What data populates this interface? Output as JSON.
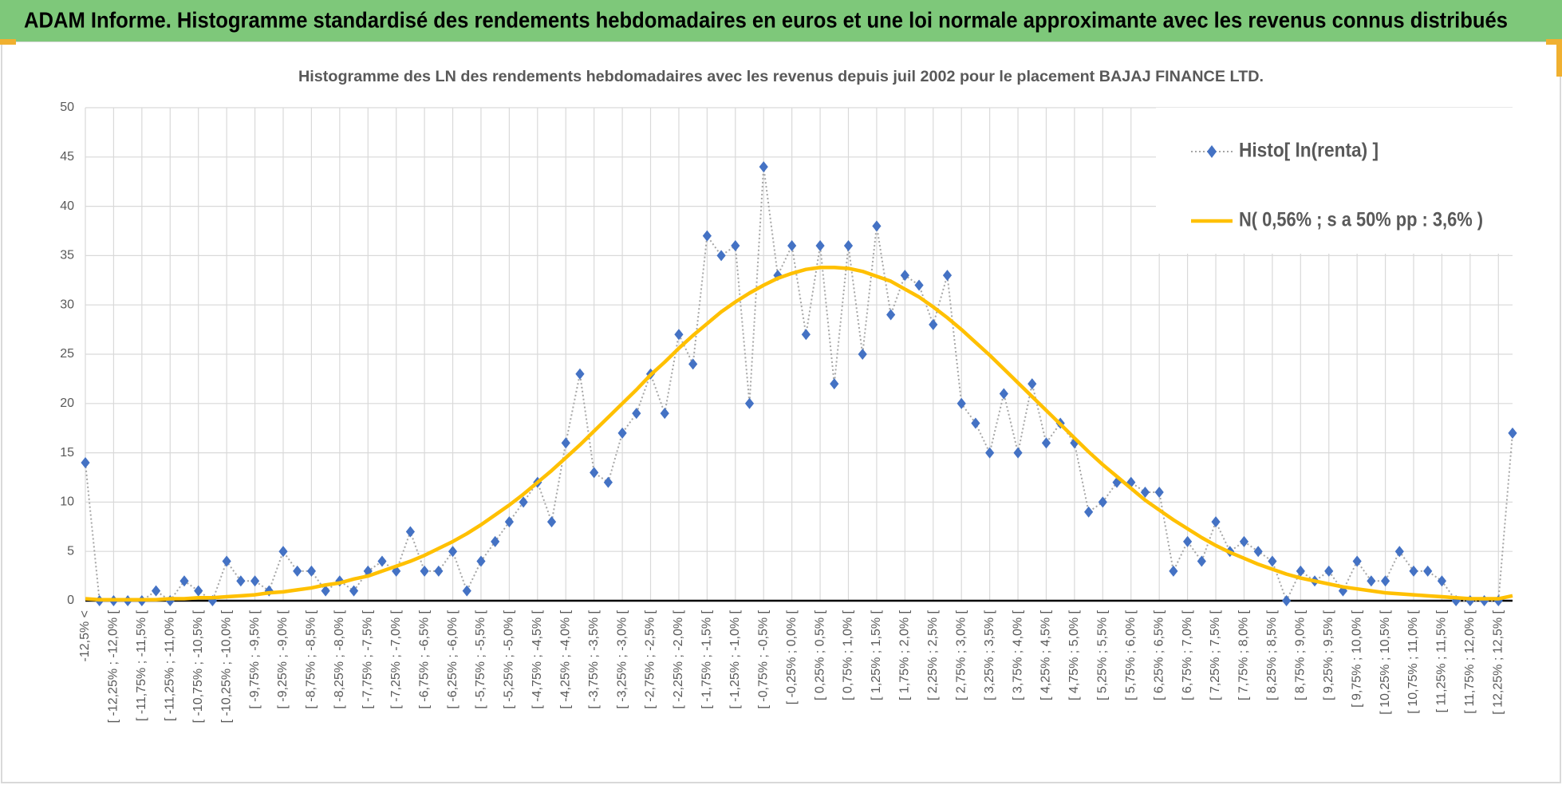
{
  "header": {
    "title": "ADAM Informe. Histogramme standardisé des rendements hebdomadaires en euros et une loi normale approximante avec les revenus connus distribués"
  },
  "chart_data": {
    "type": "line",
    "title": "Histogramme  des LN des rendements  hebdomadaires avec les revenus depuis juil 2002 pour le placement BAJAJ FINANCE LTD.",
    "categories": [
      "-12,5% <",
      null,
      "[ -12,25% ; -12,0% [",
      null,
      "[ -11,75% ; -11,5% [",
      null,
      "[ -11,25% ; -11,0% [",
      null,
      "[ -10,75% ; -10,5% [",
      null,
      "[ -10,25% ; -10,0% [",
      null,
      "[ -9,75% ; -9,5% [",
      null,
      "[ -9,25% ; -9,0% [",
      null,
      "[ -8,75% ; -8,5% [",
      null,
      "[ -8,25% ; -8,0% [",
      null,
      "[ -7,75% ; -7,5% [",
      null,
      "[ -7,25% ; -7,0% [",
      null,
      "[ -6,75% ; -6,5% [",
      null,
      "[ -6,25% ; -6,0% [",
      null,
      "[ -5,75% ; -5,5% [",
      null,
      "[ -5,25% ; -5,0% [",
      null,
      "[ -4,75% ; -4,5% [",
      null,
      "[ -4,25% ; -4,0% [",
      null,
      "[ -3,75% ; -3,5% [",
      null,
      "[ -3,25% ; -3,0% [",
      null,
      "[ -2,75% ; -2,5% [",
      null,
      "[ -2,25% ; -2,0% [",
      null,
      "[ -1,75% ; -1,5% [",
      null,
      "[ -1,25% ; -1,0% [",
      null,
      "[ -0,75% ; -0,5% [",
      null,
      "[ -0,25% ; 0,0% [",
      null,
      "[ 0,25% ; 0,5% [",
      null,
      "[ 0,75% ; 1,0% [",
      null,
      "[ 1,25% ; 1,5% [",
      null,
      "[ 1,75% ; 2,0% [",
      null,
      "[ 2,25% ; 2,5% [",
      null,
      "[ 2,75% ; 3,0% [",
      null,
      "[ 3,25% ; 3,5% [",
      null,
      "[ 3,75% ; 4,0% [",
      null,
      "[ 4,25% ; 4,5% [",
      null,
      "[ 4,75% ; 5,0% [",
      null,
      "[ 5,25% ; 5,5% [",
      null,
      "[ 5,75% ; 6,0% [",
      null,
      "[ 6,25% ; 6,5% [",
      null,
      "[ 6,75% ; 7,0% [",
      null,
      "[ 7,25% ; 7,5% [",
      null,
      "[ 7,75% ; 8,0% [",
      null,
      "[ 8,25% ; 8,5% [",
      null,
      "[ 8,75% ; 9,0% [",
      null,
      "[ 9,25% ; 9,5% [",
      null,
      "[ 9,75% ; 10,0% [",
      null,
      "[ 10,25% ; 10,5% [",
      null,
      "[ 10,75% ; 11,0% [",
      null,
      "[ 11,25% ; 11,5% [",
      null,
      "[ 11,75% ; 12,0% [",
      null,
      "[ 12,25% ; 12,5% [",
      null
    ],
    "series": [
      {
        "name": "Histo[ ln(renta) ]",
        "color": "#4472c4",
        "line_color": "#a6a6a6",
        "line_style": "dotted",
        "line_width": 2,
        "marker": "diamond",
        "values": [
          14,
          0,
          0,
          0,
          0,
          1,
          0,
          2,
          1,
          0,
          4,
          2,
          2,
          1,
          5,
          3,
          3,
          1,
          2,
          1,
          3,
          4,
          3,
          7,
          3,
          3,
          5,
          1,
          4,
          6,
          8,
          10,
          12,
          8,
          16,
          23,
          13,
          12,
          17,
          19,
          23,
          19,
          27,
          24,
          37,
          35,
          36,
          20,
          44,
          33,
          36,
          27,
          36,
          22,
          36,
          25,
          38,
          29,
          33,
          32,
          28,
          33,
          20,
          18,
          15,
          21,
          15,
          22,
          16,
          18,
          16,
          9,
          10,
          12,
          12,
          11,
          11,
          3,
          6,
          4,
          8,
          5,
          6,
          5,
          4,
          0,
          3,
          2,
          3,
          1,
          4,
          2,
          2,
          5,
          3,
          3,
          2,
          0,
          0,
          0,
          0,
          17
        ]
      },
      {
        "name": "N( 0,56% ; s a 50% pp : 3,6% )",
        "color": "#ffc000",
        "line_color": "#ffc000",
        "line_style": "solid",
        "line_width": 4.5,
        "values": [
          0.2,
          0.1,
          0.1,
          0.1,
          0.1,
          0.1,
          0.2,
          0.2,
          0.3,
          0.3,
          0.4,
          0.5,
          0.6,
          0.8,
          0.9,
          1.1,
          1.3,
          1.6,
          1.8,
          2.2,
          2.5,
          3.0,
          3.5,
          4.0,
          4.6,
          5.3,
          6.0,
          6.8,
          7.7,
          8.7,
          9.7,
          10.8,
          12.0,
          13.2,
          14.5,
          15.8,
          17.2,
          18.6,
          20.0,
          21.4,
          22.9,
          24.2,
          25.6,
          26.9,
          28.1,
          29.3,
          30.3,
          31.2,
          32.0,
          32.7,
          33.2,
          33.6,
          33.8,
          33.8,
          33.7,
          33.4,
          32.9,
          32.4,
          31.6,
          30.8,
          29.8,
          28.7,
          27.5,
          26.2,
          24.9,
          23.5,
          22.1,
          20.7,
          19.3,
          17.9,
          16.5,
          15.1,
          13.8,
          12.6,
          11.4,
          10.2,
          9.2,
          8.2,
          7.3,
          6.4,
          5.6,
          4.9,
          4.3,
          3.7,
          3.2,
          2.7,
          2.3,
          2.0,
          1.7,
          1.4,
          1.2,
          1.0,
          0.8,
          0.7,
          0.6,
          0.5,
          0.4,
          0.3,
          0.2,
          0.2,
          0.2,
          0.5
        ]
      }
    ],
    "ylim": [
      0,
      50
    ],
    "yticks": [
      0,
      5,
      10,
      15,
      20,
      25,
      30,
      35,
      40,
      45,
      50
    ],
    "grid": true,
    "legend": "upper right"
  }
}
